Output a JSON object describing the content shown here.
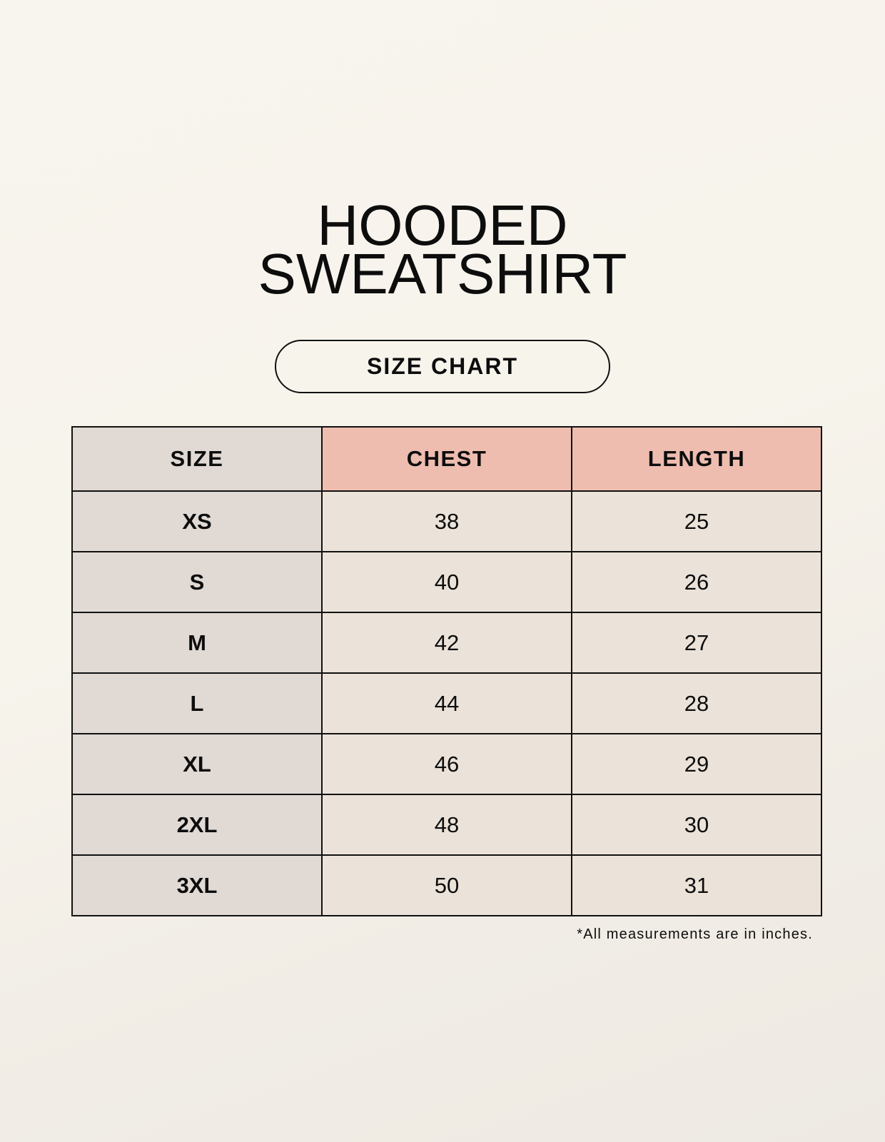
{
  "title": {
    "line1": "HOODED",
    "line2": "SWEATSHIRT"
  },
  "subtitle": "SIZE CHART",
  "table": {
    "headers": [
      "SIZE",
      "CHEST",
      "LENGTH"
    ],
    "rows": [
      [
        "XS",
        "38",
        "25"
      ],
      [
        "S",
        "40",
        "26"
      ],
      [
        "M",
        "42",
        "27"
      ],
      [
        "L",
        "44",
        "28"
      ],
      [
        "XL",
        "46",
        "29"
      ],
      [
        "2XL",
        "48",
        "30"
      ],
      [
        "3XL",
        "50",
        "31"
      ]
    ]
  },
  "footnote": "*All measurements are in inches.",
  "colors": {
    "size_column": "#e0d9d4",
    "header_accent": "#eebdb0",
    "value_cells": "#ebe3d9"
  }
}
